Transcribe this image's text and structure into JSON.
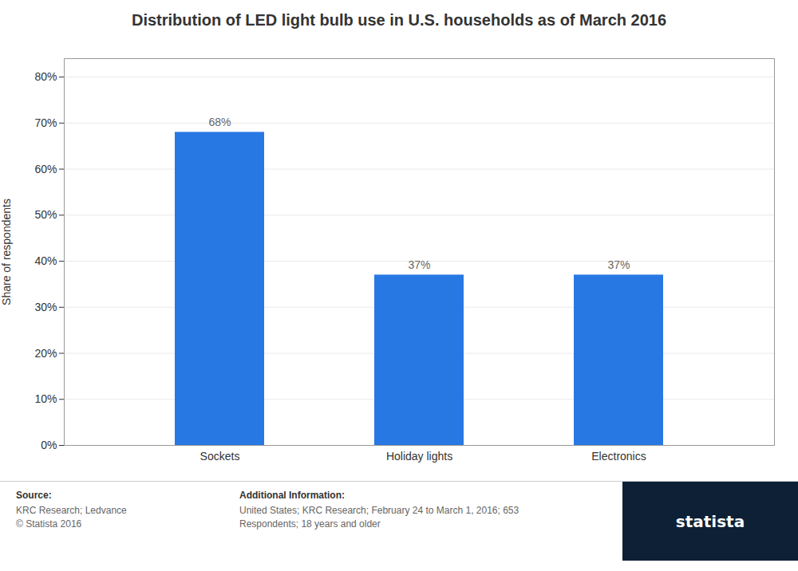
{
  "chart_data": {
    "type": "bar",
    "title": "Distribution of LED light bulb use in U.S. households as of March 2016",
    "categories": [
      "Sockets",
      "Holiday lights",
      "Electronics"
    ],
    "values": [
      68,
      37,
      37
    ],
    "value_labels": [
      "68%",
      "37%",
      "37%"
    ],
    "data_labels": true,
    "color": "#2878E4",
    "ylabel": "Share of respondents",
    "ylim": [
      0,
      84
    ],
    "yticks": [
      {
        "value": 0,
        "label": "0%"
      },
      {
        "value": 10,
        "label": "10%"
      },
      {
        "value": 20,
        "label": "20%"
      },
      {
        "value": 30,
        "label": "30%"
      },
      {
        "value": 40,
        "label": "40%"
      },
      {
        "value": 50,
        "label": "50%"
      },
      {
        "value": 60,
        "label": "60%"
      },
      {
        "value": 70,
        "label": "70%"
      },
      {
        "value": 80,
        "label": "80%"
      }
    ],
    "grid": true,
    "annotations": [
      "Source:",
      "KRC Research; Ledvance\n© Statista 2016",
      "Additional Information:",
      "United States; KRC Research; February 24 to March 1, 2016; 653\nRespondents; 18 years and older",
      "statista"
    ]
  }
}
